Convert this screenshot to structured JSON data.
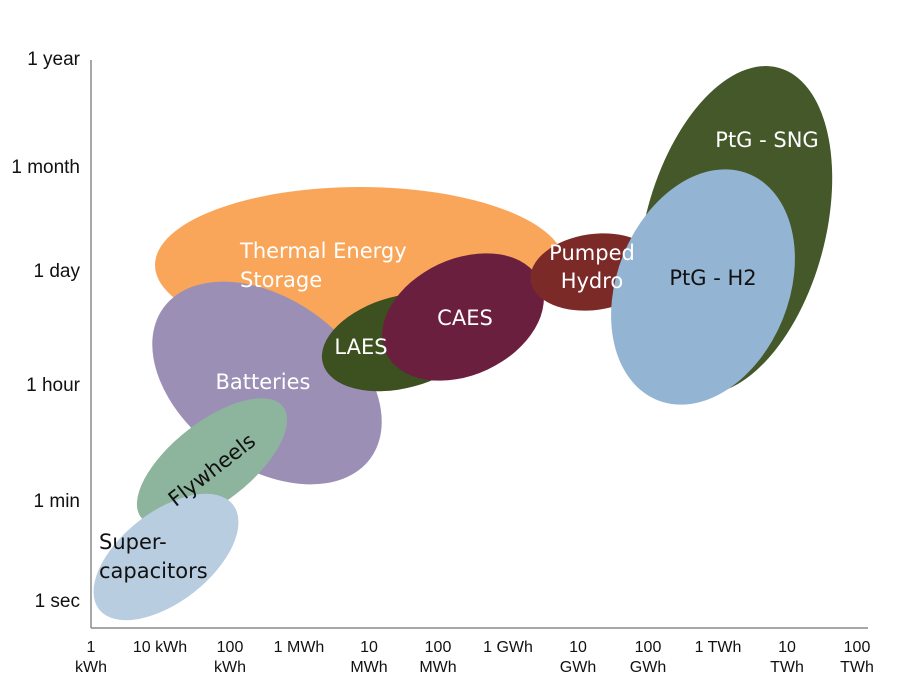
{
  "chart_data": {
    "type": "bubble",
    "title": "",
    "xlabel": "",
    "ylabel": "",
    "grid": false,
    "y_ticks": [
      "1 sec",
      "1 min",
      "1 hour",
      "1 day",
      "1 month",
      "1 year"
    ],
    "x_ticks": [
      [
        "1",
        "kWh"
      ],
      [
        "10 kWh"
      ],
      [
        "100",
        "kWh"
      ],
      [
        "1 MWh"
      ],
      [
        "10",
        "MWh"
      ],
      [
        "100",
        "MWh"
      ],
      [
        "1 GWh"
      ],
      [
        "10",
        "GWh"
      ],
      [
        "100",
        "GWh"
      ],
      [
        "1 TWh"
      ],
      [
        "10",
        "TWh"
      ],
      [
        "100",
        "TWh"
      ]
    ],
    "technologies": [
      {
        "lines": [
          "Thermal Energy",
          "Storage"
        ],
        "color": "#f9a65a",
        "text_color": "#ffffff",
        "energy_range": [
          "10 kWh",
          "10 GWh"
        ],
        "duration_range": [
          "1 hour",
          "1 month"
        ]
      },
      {
        "lines": [
          "Batteries"
        ],
        "color": "#9c8fb5",
        "text_color": "#ffffff",
        "energy_range": [
          "1 kWh",
          "10 MWh"
        ],
        "duration_range": [
          "1 min",
          "1 day"
        ]
      },
      {
        "lines": [
          "Flywheels"
        ],
        "color": "#8db49c",
        "text_color": "#111111",
        "energy_range": [
          "1 kWh",
          "1 MWh"
        ],
        "duration_range": [
          "1 sec",
          "1 hour"
        ]
      },
      {
        "lines": [
          "Super-",
          "capacitors"
        ],
        "color": "#b9cde0",
        "text_color": "#111111",
        "energy_range": [
          "1 kWh",
          "100 kWh"
        ],
        "duration_range": [
          "1 sec",
          "1 min"
        ]
      },
      {
        "lines": [
          "LAES"
        ],
        "color": "#3d5020",
        "text_color": "#ffffff",
        "energy_range": [
          "1 MWh",
          "1 GWh"
        ],
        "duration_range": [
          "1 hour",
          "1 day"
        ]
      },
      {
        "lines": [
          "CAES"
        ],
        "color": "#6b1f3f",
        "text_color": "#ffffff",
        "energy_range": [
          "10 MWh",
          "1 GWh"
        ],
        "duration_range": [
          "1 hour",
          "1 day"
        ]
      },
      {
        "lines": [
          "Pumped",
          "Hydro"
        ],
        "color": "#7b2a28",
        "text_color": "#ffffff",
        "energy_range": [
          "1 GWh",
          "100 GWh"
        ],
        "duration_range": [
          "1 hour",
          "1 day"
        ]
      },
      {
        "lines": [
          "PtG - SNG"
        ],
        "color": "#44582a",
        "text_color": "#ffffff",
        "energy_range": [
          "100 GWh",
          "100 TWh"
        ],
        "duration_range": [
          "1 hour",
          "1 year"
        ]
      },
      {
        "lines": [
          "PtG - H2"
        ],
        "color": "#93b4d2",
        "text_color": "#111111",
        "energy_range": [
          "100 GWh",
          "10 TWh"
        ],
        "duration_range": [
          "1 hour",
          "1 month"
        ]
      }
    ]
  }
}
